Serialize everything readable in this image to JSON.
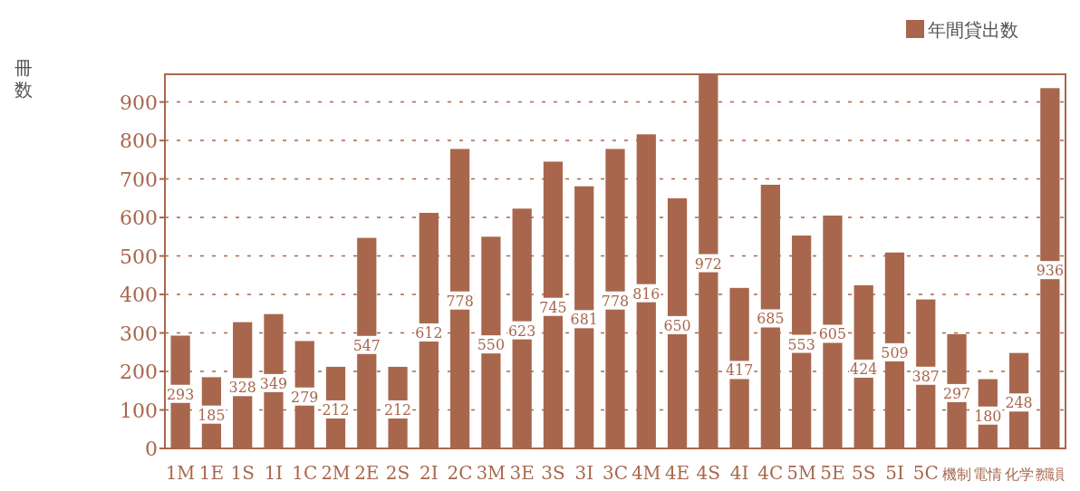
{
  "chart_data": {
    "type": "bar",
    "ylabel": "冊数",
    "categories": [
      "1M",
      "1E",
      "1S",
      "1I",
      "1C",
      "2M",
      "2E",
      "2S",
      "2I",
      "2C",
      "3M",
      "3E",
      "3S",
      "3I",
      "3C",
      "4M",
      "4E",
      "4S",
      "4I",
      "4C",
      "5M",
      "5E",
      "5S",
      "5I",
      "5C",
      "機制",
      "電情",
      "化学",
      "教職員"
    ],
    "series": [
      {
        "name": "年間貸出数",
        "color": "#a8674d",
        "values": [
          293,
          185,
          328,
          349,
          279,
          212,
          547,
          212,
          612,
          778,
          550,
          623,
          745,
          681,
          778,
          816,
          650,
          972,
          417,
          685,
          553,
          605,
          424,
          509,
          387,
          297,
          180,
          248,
          936
        ]
      }
    ],
    "ylim": [
      0,
      972
    ],
    "yticks": [
      0,
      100,
      200,
      300,
      400,
      500,
      600,
      700,
      800,
      900
    ],
    "grid": "y",
    "legend": "top right",
    "data_labels": true
  }
}
